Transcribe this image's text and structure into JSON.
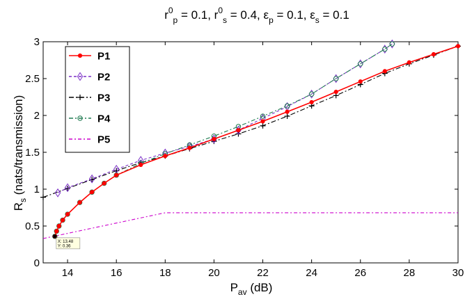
{
  "chart_data": {
    "type": "line",
    "title": {
      "parts": [
        {
          "t": "r"
        },
        {
          "t": "0",
          "sup": true
        },
        {
          "t": "p",
          "sub": true
        },
        {
          "t": " = 0.1,  r"
        },
        {
          "t": "0",
          "sup": true
        },
        {
          "t": "s",
          "sub": true
        },
        {
          "t": " = 0.4, ε"
        },
        {
          "t": "p",
          "sub": true
        },
        {
          "t": " = 0.1, ε"
        },
        {
          "t": "s",
          "sub": true
        },
        {
          "t": " = 0.1"
        }
      ]
    },
    "xlabel": {
      "main": "P",
      "sub": "av",
      "rest": " (dB)"
    },
    "ylabel": {
      "main": "R",
      "sub": "s",
      "rest": "  (nats/transmission)"
    },
    "xlim": [
      13,
      30
    ],
    "ylim": [
      0,
      3
    ],
    "xticks": [
      14,
      16,
      18,
      20,
      22,
      24,
      26,
      28,
      30
    ],
    "xtick_labels": [
      "14",
      "16",
      "18",
      "20",
      "22",
      "24",
      "26",
      "28",
      "30"
    ],
    "yticks": [
      0,
      0.5,
      1,
      1.5,
      2,
      2.5,
      3
    ],
    "ytick_labels": [
      "0",
      "0.5",
      "1",
      "1.5",
      "2",
      "2.5",
      "3"
    ],
    "grid": false,
    "legend_position": "top-left",
    "series": [
      {
        "name": "P1",
        "color": "#ff0000",
        "dash": "solid",
        "marker": "dot",
        "x": [
          13.48,
          13.55,
          13.65,
          13.8,
          14,
          14.5,
          15,
          15.5,
          16,
          17,
          18,
          19,
          20,
          21,
          22,
          23,
          24,
          25,
          26,
          27,
          28,
          29,
          30
        ],
        "y": [
          0.36,
          0.43,
          0.5,
          0.58,
          0.66,
          0.82,
          0.96,
          1.08,
          1.19,
          1.33,
          1.45,
          1.56,
          1.68,
          1.8,
          1.92,
          2.05,
          2.18,
          2.32,
          2.46,
          2.6,
          2.72,
          2.83,
          2.94
        ]
      },
      {
        "name": "P2",
        "color": "#7a2fc6",
        "dash": "4,3",
        "marker": "diamond",
        "x": [
          13.6,
          14,
          15,
          16,
          17,
          18,
          19,
          20,
          21,
          22,
          23,
          24,
          25,
          26,
          27,
          27.3
        ],
        "y": [
          0.95,
          1.02,
          1.14,
          1.27,
          1.39,
          1.49,
          1.58,
          1.68,
          1.8,
          1.96,
          2.12,
          2.29,
          2.5,
          2.7,
          2.9,
          2.97
        ]
      },
      {
        "name": "P3",
        "color": "#000000",
        "dash": "7,3,2,3",
        "marker": "plus",
        "x": [
          13,
          14,
          15,
          16,
          17,
          18,
          19,
          20,
          21,
          22,
          23,
          24,
          25,
          26,
          27,
          28,
          29,
          30
        ],
        "y": [
          0.89,
          1.01,
          1.13,
          1.25,
          1.36,
          1.45,
          1.55,
          1.65,
          1.75,
          1.86,
          1.99,
          2.13,
          2.27,
          2.42,
          2.57,
          2.7,
          2.82,
          2.94
        ]
      },
      {
        "name": "P4",
        "color": "#1f7a50",
        "dash": "6,3,2,3",
        "marker": "circle",
        "x": [
          13.48,
          13.55,
          13.65,
          13.8,
          14,
          14.5,
          15,
          15.5,
          16,
          17,
          18,
          19,
          20,
          21,
          22,
          23,
          24,
          25,
          26,
          27,
          27.3
        ],
        "y": [
          0.36,
          0.43,
          0.5,
          0.58,
          0.66,
          0.82,
          0.96,
          1.08,
          1.19,
          1.35,
          1.48,
          1.6,
          1.72,
          1.85,
          1.99,
          2.13,
          2.29,
          2.5,
          2.7,
          2.9,
          2.97
        ]
      },
      {
        "name": "P5",
        "color": "#cc00cc",
        "dash": "5,3,2,3",
        "marker": "none",
        "x": [
          13,
          18,
          30
        ],
        "y": [
          0.33,
          0.68,
          0.68
        ]
      }
    ],
    "annotation": {
      "x": 13.48,
      "y": 0.36,
      "lines": [
        "X: 13.48",
        "Y: 0.36"
      ]
    }
  }
}
